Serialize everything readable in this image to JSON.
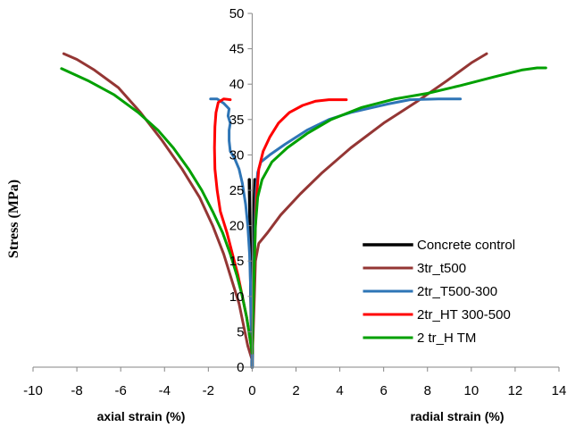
{
  "chart_data": {
    "type": "line",
    "title": "",
    "ylabel": "Stress (MPa)",
    "xlabel_left": "axial strain (%)",
    "xlabel_right": "radial strain (%)",
    "xlim": [
      -10,
      14
    ],
    "ylim": [
      0,
      50
    ],
    "x_ticks": [
      -10,
      -8,
      -6,
      -4,
      -2,
      0,
      2,
      4,
      6,
      8,
      10,
      12,
      14
    ],
    "y_ticks": [
      0,
      5,
      10,
      15,
      20,
      25,
      30,
      35,
      40,
      45,
      50
    ],
    "grid": false,
    "legend_position": "bottom-right",
    "series": [
      {
        "name": "Concrete control",
        "color": "#000000",
        "axial": [
          [
            0,
            0
          ],
          [
            -0.03,
            5
          ],
          [
            -0.06,
            10
          ],
          [
            -0.08,
            15
          ],
          [
            -0.1,
            20
          ],
          [
            -0.12,
            24
          ],
          [
            -0.13,
            26.5
          ]
        ],
        "radial": [
          [
            0,
            0
          ],
          [
            0.02,
            5
          ],
          [
            0.04,
            10
          ],
          [
            0.06,
            15
          ],
          [
            0.08,
            20
          ],
          [
            0.1,
            24
          ],
          [
            0.12,
            26.5
          ]
        ]
      },
      {
        "name": "3tr_t500",
        "color": "#943634",
        "axial": [
          [
            0,
            1
          ],
          [
            -0.2,
            3
          ],
          [
            -0.4,
            6
          ],
          [
            -0.6,
            9
          ],
          [
            -0.9,
            12
          ],
          [
            -1.3,
            16
          ],
          [
            -1.8,
            20
          ],
          [
            -2.4,
            24
          ],
          [
            -3.2,
            28
          ],
          [
            -4.1,
            32
          ],
          [
            -5.1,
            36
          ],
          [
            -6.1,
            39.5
          ],
          [
            -7.2,
            42
          ],
          [
            -8.0,
            43.5
          ],
          [
            -8.6,
            44.3
          ]
        ],
        "radial": [
          [
            0,
            1
          ],
          [
            0.05,
            5
          ],
          [
            0.1,
            10
          ],
          [
            0.15,
            15
          ],
          [
            0.3,
            17.5
          ],
          [
            0.7,
            19
          ],
          [
            1.3,
            21.5
          ],
          [
            2.2,
            24.5
          ],
          [
            3.2,
            27.5
          ],
          [
            4.5,
            31
          ],
          [
            6.0,
            34.5
          ],
          [
            7.5,
            37.5
          ],
          [
            8.9,
            40.5
          ],
          [
            10.0,
            43
          ],
          [
            10.7,
            44.3
          ]
        ]
      },
      {
        "name": "2tr_T500-300",
        "color": "#2E75B6",
        "axial": [
          [
            0,
            0
          ],
          [
            -0.02,
            3
          ],
          [
            -0.05,
            8
          ],
          [
            -0.08,
            12
          ],
          [
            -0.12,
            16
          ],
          [
            -0.2,
            20
          ],
          [
            -0.3,
            23
          ],
          [
            -0.45,
            26
          ],
          [
            -0.6,
            28
          ],
          [
            -0.8,
            29.5
          ],
          [
            -1.0,
            30.5
          ],
          [
            -1.05,
            32
          ],
          [
            -1.05,
            33.5
          ],
          [
            -1.0,
            34.5
          ],
          [
            -1.1,
            35.5
          ],
          [
            -1.05,
            36.5
          ],
          [
            -1.3,
            37.3
          ],
          [
            -1.6,
            37.9
          ],
          [
            -1.9,
            37.9
          ]
        ],
        "radial": [
          [
            0,
            0
          ],
          [
            0.02,
            5
          ],
          [
            0.04,
            10
          ],
          [
            0.08,
            15
          ],
          [
            0.12,
            20
          ],
          [
            0.18,
            25
          ],
          [
            0.25,
            27.5
          ],
          [
            0.4,
            29
          ],
          [
            0.8,
            30
          ],
          [
            1.5,
            31.5
          ],
          [
            2.5,
            33.5
          ],
          [
            3.5,
            35
          ],
          [
            4.5,
            36
          ],
          [
            5.5,
            36.7
          ],
          [
            6.2,
            37.2
          ],
          [
            7.2,
            37.8
          ],
          [
            8.5,
            37.9
          ],
          [
            9.5,
            37.9
          ]
        ]
      },
      {
        "name": "2tr_HT 300-500",
        "color": "#FF0000",
        "axial": [
          [
            0,
            2
          ],
          [
            -0.1,
            4
          ],
          [
            -0.25,
            7
          ],
          [
            -0.45,
            10
          ],
          [
            -0.65,
            13
          ],
          [
            -0.9,
            16
          ],
          [
            -1.15,
            19
          ],
          [
            -1.45,
            22
          ],
          [
            -1.6,
            25
          ],
          [
            -1.7,
            28
          ],
          [
            -1.72,
            31
          ],
          [
            -1.7,
            34
          ],
          [
            -1.65,
            36
          ],
          [
            -1.55,
            37.4
          ],
          [
            -1.3,
            37.9
          ],
          [
            -1.0,
            37.8
          ]
        ],
        "radial": [
          [
            0,
            2
          ],
          [
            0.03,
            6
          ],
          [
            0.06,
            10
          ],
          [
            0.1,
            15
          ],
          [
            0.15,
            20
          ],
          [
            0.2,
            24
          ],
          [
            0.3,
            28
          ],
          [
            0.5,
            30.5
          ],
          [
            0.8,
            32.5
          ],
          [
            1.2,
            34.5
          ],
          [
            1.7,
            36
          ],
          [
            2.3,
            37
          ],
          [
            2.9,
            37.6
          ],
          [
            3.5,
            37.8
          ],
          [
            4.3,
            37.8
          ]
        ]
      },
      {
        "name": "2 tr_H TM",
        "color": "#00A000",
        "axial": [
          [
            0,
            2
          ],
          [
            -0.1,
            4
          ],
          [
            -0.25,
            7
          ],
          [
            -0.45,
            10
          ],
          [
            -0.7,
            13
          ],
          [
            -1.0,
            16
          ],
          [
            -1.35,
            19
          ],
          [
            -1.8,
            22
          ],
          [
            -2.3,
            25
          ],
          [
            -2.9,
            28
          ],
          [
            -3.6,
            31
          ],
          [
            -4.3,
            33.5
          ],
          [
            -5.2,
            36
          ],
          [
            -6.3,
            38.5
          ],
          [
            -7.5,
            40.5
          ],
          [
            -8.7,
            42.2
          ]
        ],
        "radial": [
          [
            0,
            2
          ],
          [
            0.03,
            6
          ],
          [
            0.06,
            10
          ],
          [
            0.1,
            15
          ],
          [
            0.15,
            20
          ],
          [
            0.25,
            24
          ],
          [
            0.45,
            26.5
          ],
          [
            0.9,
            29
          ],
          [
            1.6,
            31
          ],
          [
            2.5,
            33
          ],
          [
            3.6,
            35
          ],
          [
            5.0,
            36.7
          ],
          [
            6.5,
            37.9
          ],
          [
            8.0,
            38.7
          ],
          [
            9.5,
            39.8
          ],
          [
            11.0,
            41
          ],
          [
            12.3,
            42
          ],
          [
            13.0,
            42.3
          ],
          [
            13.4,
            42.3
          ]
        ]
      }
    ]
  }
}
